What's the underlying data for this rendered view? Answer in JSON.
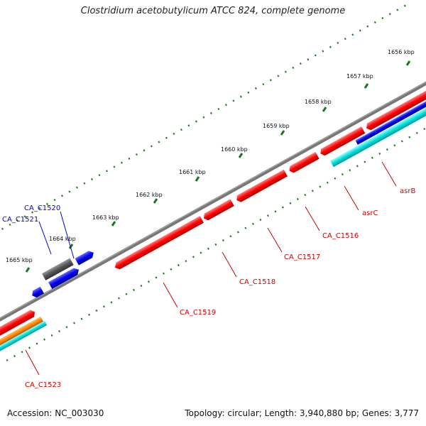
{
  "title": "Clostridium acetobutylicum ATCC 824, complete genome",
  "accession": "Accession: NC_003030",
  "topology": "Topology: circular; Length: 3,940,880 bp; Genes: 3,777",
  "colors": {
    "backbone": "#777777",
    "ruler_tick": "#1a7a1a",
    "gene_red": "#ff0000",
    "gene_blue": "#0000ee",
    "gene_gray": "#555555",
    "gene_cyan": "#00dddd",
    "gene_orange": "#ff8800",
    "label_red": "#cc0000",
    "label_blue": "#0000cc"
  },
  "ruler": {
    "labels": [
      "1656 kbp",
      "1657 kbp",
      "1658 kbp",
      "1659 kbp",
      "1660 kbp",
      "1661 kbp",
      "1662 kbp",
      "1663 kbp",
      "1664 kbp",
      "1665 kbp"
    ]
  },
  "gene_labels": {
    "ca_c1520": "CA_C1520",
    "ca_c1521": "CA_C1521",
    "asrb": "asrB",
    "asrc": "asrC",
    "ca_c1516": "CA_C1516",
    "ca_c1517": "CA_C1517",
    "ca_c1518": "CA_C1518",
    "ca_c1519": "CA_C1519",
    "ca_c1523": "CA_C1523"
  }
}
